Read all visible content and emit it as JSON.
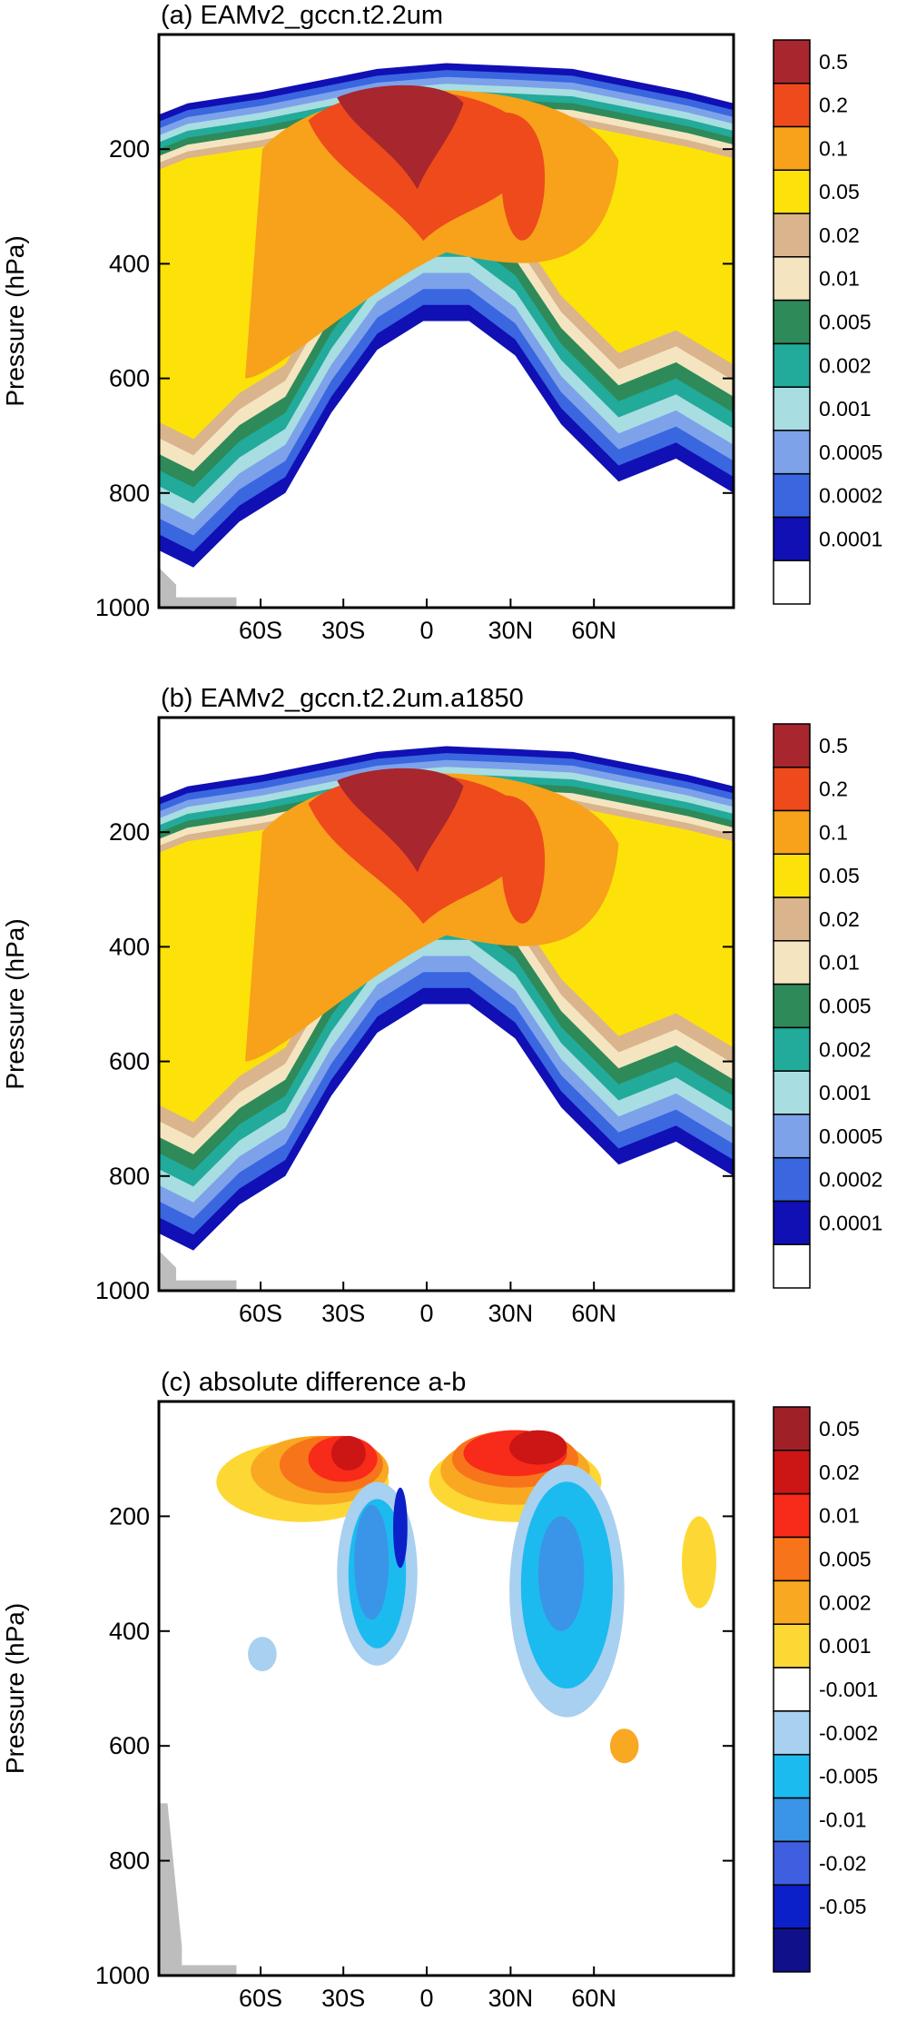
{
  "chart_data": [
    {
      "type": "heatmap",
      "title": "(a) EAMv2_gccn.t2.2um",
      "ylabel": "Pressure (hPa)",
      "x_ticks": [
        "60S",
        "30S",
        "0",
        "30N",
        "60N"
      ],
      "y_ticks": [
        "200",
        "400",
        "600",
        "800",
        "1000"
      ],
      "colorbar": {
        "labels": [
          "0.5",
          "0.2",
          "0.1",
          "0.05",
          "0.02",
          "0.01",
          "0.005",
          "0.002",
          "0.001",
          "0.0005",
          "0.0002",
          "0.0001"
        ],
        "colors": [
          "#a8262e",
          "#ee4a1c",
          "#f7a21a",
          "#fde20a",
          "#d9b48c",
          "#f5e4c0",
          "#2e8a59",
          "#22aa9a",
          "#a8dde2",
          "#7da2ea",
          "#3a66e0",
          "#1010b4",
          "#ffffff"
        ]
      }
    },
    {
      "type": "heatmap",
      "title": "(b) EAMv2_gccn.t2.2um.a1850",
      "ylabel": "Pressure (hPa)",
      "x_ticks": [
        "60S",
        "30S",
        "0",
        "30N",
        "60N"
      ],
      "y_ticks": [
        "200",
        "400",
        "600",
        "800",
        "1000"
      ],
      "colorbar": {
        "labels": [
          "0.5",
          "0.2",
          "0.1",
          "0.05",
          "0.02",
          "0.01",
          "0.005",
          "0.002",
          "0.001",
          "0.0005",
          "0.0002",
          "0.0001"
        ],
        "colors": [
          "#a8262e",
          "#ee4a1c",
          "#f7a21a",
          "#fde20a",
          "#d9b48c",
          "#f5e4c0",
          "#2e8a59",
          "#22aa9a",
          "#a8dde2",
          "#7da2ea",
          "#3a66e0",
          "#1010b4",
          "#ffffff"
        ]
      }
    },
    {
      "type": "heatmap",
      "title": "(c) absolute difference a-b",
      "ylabel": "Pressure (hPa)",
      "x_ticks": [
        "60S",
        "30S",
        "0",
        "30N",
        "60N"
      ],
      "y_ticks": [
        "200",
        "400",
        "600",
        "800",
        "1000"
      ],
      "colorbar": {
        "labels": [
          "0.05",
          "0.02",
          "0.01",
          "0.005",
          "0.002",
          "0.001",
          "-0.001",
          "-0.002",
          "-0.005",
          "-0.01",
          "-0.02",
          "-0.05"
        ],
        "colors": [
          "#a02027",
          "#cc1515",
          "#f82a1a",
          "#f8741a",
          "#f9a822",
          "#fdd835",
          "#ffffff",
          "#a8d0f0",
          "#1cbbef",
          "#3a95e8",
          "#3f5fe0",
          "#0b20c8",
          "#10108a"
        ]
      }
    }
  ]
}
